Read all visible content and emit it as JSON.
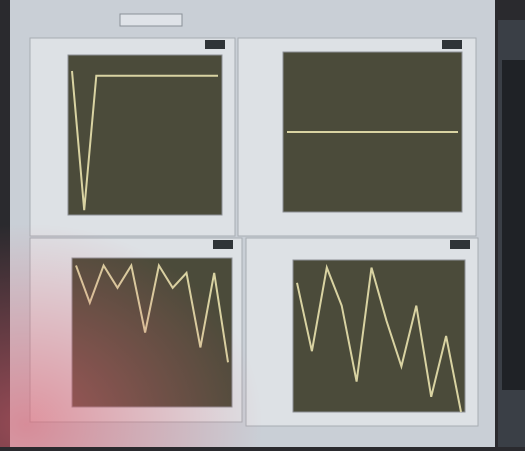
{
  "chart_data": [
    {
      "type": "line",
      "color": "#d9d3a2",
      "ylim": [
        0,
        10
      ],
      "values": [
        9,
        0.3,
        8.7,
        8.7,
        8.7,
        8.7,
        8.7,
        8.7,
        8.7,
        8.7,
        8.7,
        8.7,
        8.7
      ]
    },
    {
      "type": "line",
      "color": "#d9d3a2",
      "ylim": [
        0,
        10
      ],
      "values": [
        5,
        5,
        5,
        5,
        5,
        5,
        5,
        5,
        5,
        5,
        5,
        5,
        5
      ]
    },
    {
      "type": "line",
      "color": "#d9d3a2",
      "ylim": [
        0,
        10
      ],
      "values": [
        9.5,
        7,
        9.5,
        8,
        9.5,
        5,
        9.5,
        8,
        9,
        4,
        9,
        3
      ]
    },
    {
      "type": "line",
      "color": "#d9d3a2",
      "ylim": [
        0,
        10
      ],
      "values": [
        8.5,
        4,
        9.5,
        7,
        2,
        9.5,
        6,
        3,
        7,
        1,
        5,
        0
      ]
    }
  ]
}
